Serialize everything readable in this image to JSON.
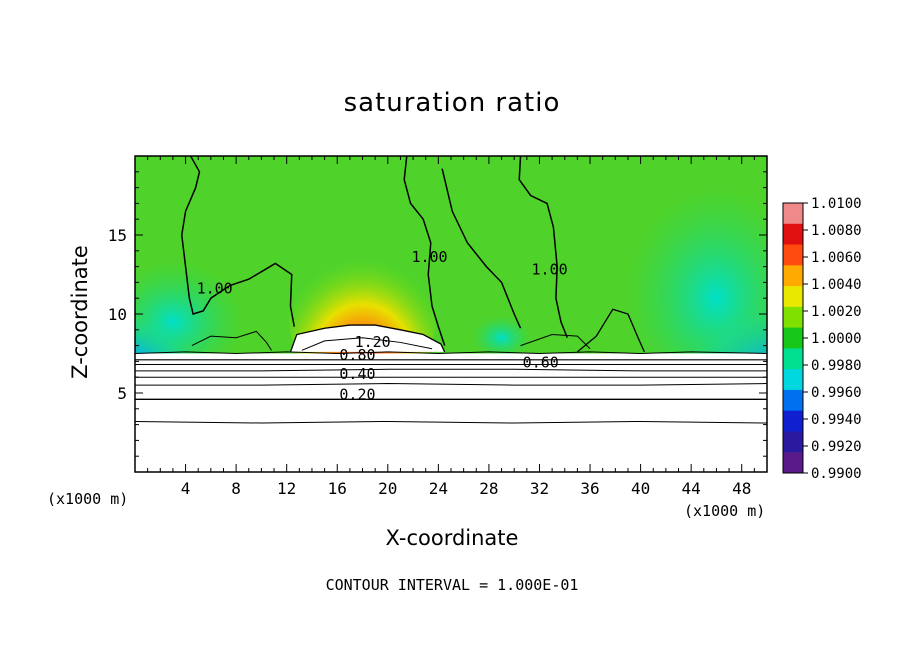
{
  "chart_data": {
    "type": "heatmap",
    "title": "saturation ratio",
    "xlabel": "X-coordinate",
    "ylabel": "Z-coordinate",
    "x_unit": "(x1000 m)",
    "y_unit": "(x1000 m)",
    "xlim": [
      0,
      50
    ],
    "ylim": [
      0,
      20
    ],
    "x_ticks": [
      4,
      8,
      12,
      16,
      20,
      24,
      28,
      32,
      36,
      40,
      44,
      48
    ],
    "y_ticks": [
      5,
      10,
      15
    ],
    "colorbar": {
      "levels": [
        "1.0100",
        "1.0080",
        "1.0060",
        "1.0040",
        "1.0020",
        "1.0000",
        "0.9980",
        "0.9960",
        "0.9940",
        "0.9920",
        "0.9900"
      ],
      "colors": [
        "#f08a8a",
        "#e01010",
        "#ff4a10",
        "#ffaa00",
        "#e8e800",
        "#80e000",
        "#18c818",
        "#00e090",
        "#00d8e0",
        "#0070f0",
        "#1020d0",
        "#2a1aa0",
        "#5a1a8a"
      ]
    },
    "contour_labels": [
      {
        "text": "1.00",
        "x": 6.3,
        "y": 11.3
      },
      {
        "text": "1.00",
        "x": 23.3,
        "y": 13.3
      },
      {
        "text": "1.00",
        "x": 32.8,
        "y": 12.5
      },
      {
        "text": "1.20",
        "x": 18.8,
        "y": 7.9
      },
      {
        "text": "0.80",
        "x": 17.6,
        "y": 7.1
      },
      {
        "text": "0.60",
        "x": 32.1,
        "y": 6.6
      },
      {
        "text": "0.40",
        "x": 17.6,
        "y": 5.9
      },
      {
        "text": "0.20",
        "x": 17.6,
        "y": 4.6
      }
    ],
    "contour_interval": "CONTOUR INTERVAL = 1.000E-01"
  }
}
